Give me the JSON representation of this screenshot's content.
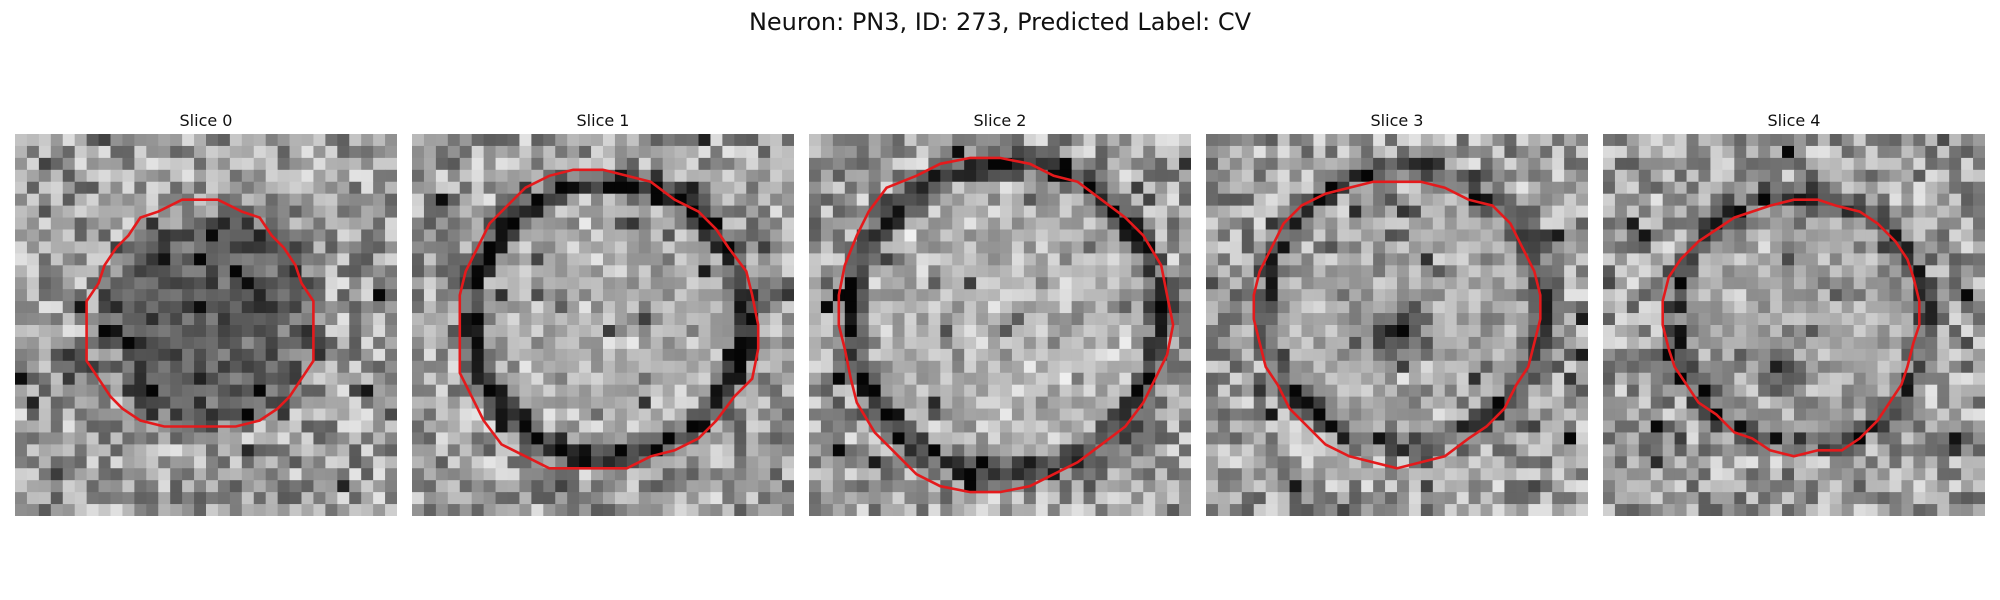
{
  "figure": {
    "title": "Neuron: PN3, ID: 273, Predicted Label: CV"
  },
  "panels": [
    {
      "title": "Slice 0"
    },
    {
      "title": "Slice 1"
    },
    {
      "title": "Slice 2"
    },
    {
      "title": "Slice 3"
    },
    {
      "title": "Slice 4"
    }
  ],
  "colors": {
    "contour": "#e41a1c",
    "background": "#ffffff"
  }
}
